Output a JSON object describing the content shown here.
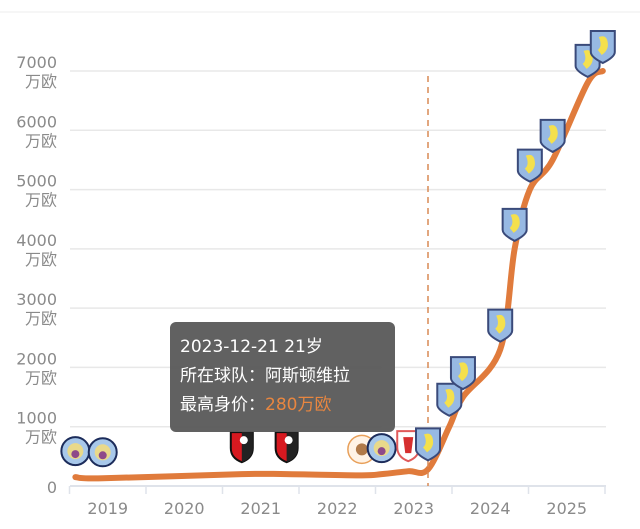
{
  "chart_data": {
    "type": "line",
    "title": "",
    "xlabel": "",
    "ylabel": "",
    "x_ticks": [
      "2019",
      "2020",
      "2021",
      "2022",
      "2023",
      "2024",
      "2025"
    ],
    "y_ticks": [
      {
        "value": 0,
        "label": "0",
        "unit": ""
      },
      {
        "value": 1000,
        "label": "1000",
        "unit": "万欧"
      },
      {
        "value": 2000,
        "label": "2000",
        "unit": "万欧"
      },
      {
        "value": 3000,
        "label": "3000",
        "unit": "万欧"
      },
      {
        "value": 4000,
        "label": "4000",
        "unit": "万欧"
      },
      {
        "value": 5000,
        "label": "5000",
        "unit": "万欧"
      },
      {
        "value": 6000,
        "label": "6000",
        "unit": "万欧"
      },
      {
        "value": 7000,
        "label": "7000",
        "unit": "万欧"
      }
    ],
    "ylim": [
      0,
      7000
    ],
    "grid": true,
    "line_color": "#e07b3c",
    "highlight_x": 2023.97,
    "points": [
      {
        "x": 2019.33,
        "y": 150,
        "club": "man-city"
      },
      {
        "x": 2019.69,
        "y": 130,
        "club": "man-city"
      },
      {
        "x": 2021.52,
        "y": 200,
        "club": "bournemouth"
      },
      {
        "x": 2022.11,
        "y": 200,
        "club": "bournemouth"
      },
      {
        "x": 2023.1,
        "y": 180,
        "club": "blackpool"
      },
      {
        "x": 2023.36,
        "y": 200,
        "club": "man-city"
      },
      {
        "x": 2023.71,
        "y": 250,
        "club": "middlesbrough"
      },
      {
        "x": 2023.97,
        "y": 280,
        "club": "aston-villa"
      },
      {
        "x": 2024.25,
        "y": 1000,
        "club": "aston-villa"
      },
      {
        "x": 2024.43,
        "y": 1500,
        "club": "aston-villa"
      },
      {
        "x": 2024.92,
        "y": 2300,
        "club": "aston-villa"
      },
      {
        "x": 2025.11,
        "y": 4000,
        "club": "aston-villa"
      },
      {
        "x": 2025.31,
        "y": 5000,
        "club": "aston-villa"
      },
      {
        "x": 2025.61,
        "y": 5500,
        "club": "aston-villa"
      },
      {
        "x": 2026.07,
        "y": 6800,
        "club": "aston-villa"
      },
      {
        "x": 2026.27,
        "y": 7000,
        "club": "aston-villa"
      }
    ]
  },
  "tooltip": {
    "date_age": "2023-12-21 21岁",
    "team_label": "所在球队：",
    "team": "阿斯顿维拉",
    "value_label": "最高身价：",
    "value": "280万欧"
  }
}
